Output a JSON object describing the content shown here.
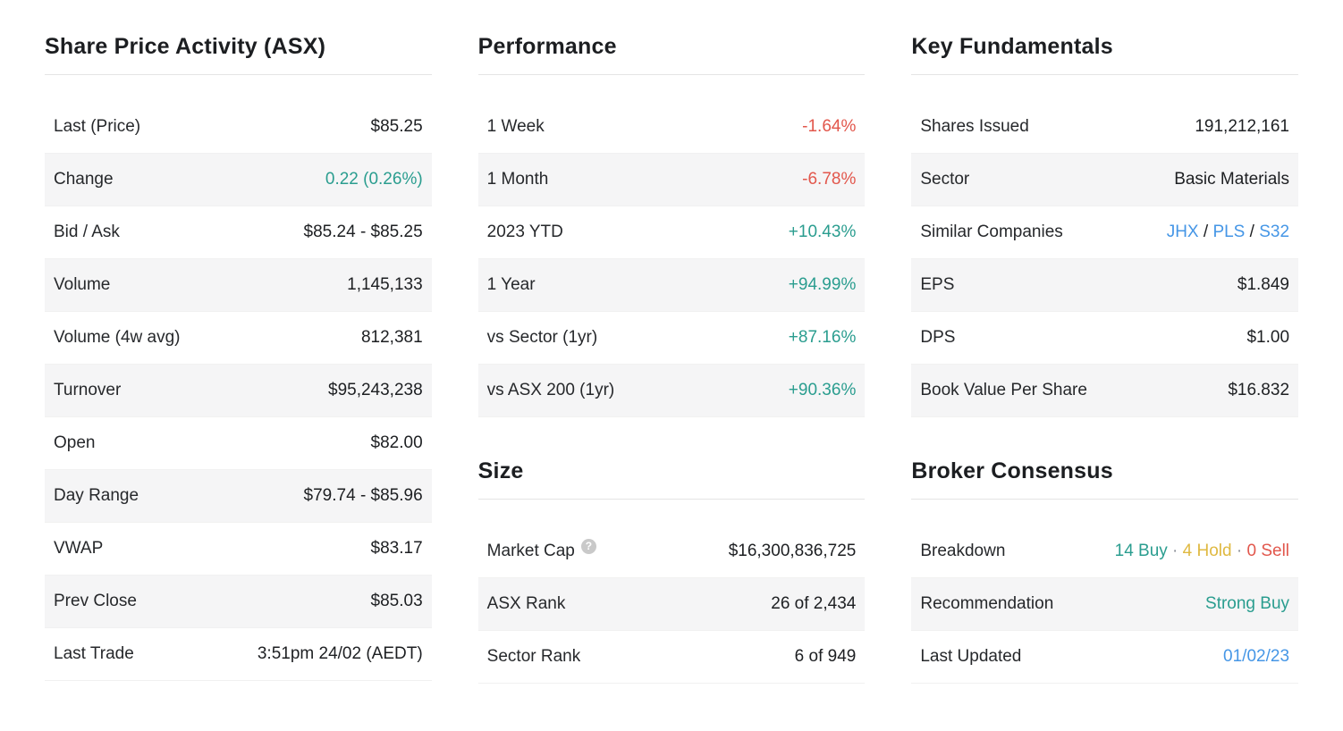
{
  "colors": {
    "positive": "#2a9d8f",
    "negative": "#e2574c",
    "link": "#4596e6",
    "hold": "#dfb941",
    "muted": "#8a8f98",
    "row_alt_bg": "#f5f5f6"
  },
  "columns": [
    {
      "sections": [
        {
          "id": "share-price-activity",
          "title": "Share Price Activity (ASX)",
          "rows": [
            {
              "label": "Last (Price)",
              "parts": [
                {
                  "text": "$85.25"
                }
              ]
            },
            {
              "label": "Change",
              "parts": [
                {
                  "text": "0.22 (0.26%)",
                  "style": "positive"
                }
              ]
            },
            {
              "label": "Bid / Ask",
              "parts": [
                {
                  "text": "$85.24 - $85.25"
                }
              ]
            },
            {
              "label": "Volume",
              "parts": [
                {
                  "text": "1,145,133"
                }
              ]
            },
            {
              "label": "Volume (4w avg)",
              "parts": [
                {
                  "text": "812,381"
                }
              ]
            },
            {
              "label": "Turnover",
              "parts": [
                {
                  "text": "$95,243,238"
                }
              ]
            },
            {
              "label": "Open",
              "parts": [
                {
                  "text": "$82.00"
                }
              ]
            },
            {
              "label": "Day Range",
              "parts": [
                {
                  "text": "$79.74 - $85.96"
                }
              ]
            },
            {
              "label": "VWAP",
              "parts": [
                {
                  "text": "$83.17"
                }
              ]
            },
            {
              "label": "Prev Close",
              "parts": [
                {
                  "text": "$85.03"
                }
              ]
            },
            {
              "label": "Last Trade",
              "parts": [
                {
                  "text": "3:51pm 24/02 (AEDT)"
                }
              ]
            }
          ]
        }
      ]
    },
    {
      "sections": [
        {
          "id": "performance",
          "title": "Performance",
          "rows": [
            {
              "label": "1 Week",
              "parts": [
                {
                  "text": "-1.64%",
                  "style": "negative"
                }
              ]
            },
            {
              "label": "1 Month",
              "parts": [
                {
                  "text": "-6.78%",
                  "style": "negative"
                }
              ]
            },
            {
              "label": "2023 YTD",
              "parts": [
                {
                  "text": "+10.43%",
                  "style": "positive"
                }
              ]
            },
            {
              "label": "1 Year",
              "parts": [
                {
                  "text": "+94.99%",
                  "style": "positive"
                }
              ]
            },
            {
              "label": "vs Sector (1yr)",
              "parts": [
                {
                  "text": "+87.16%",
                  "style": "positive"
                }
              ]
            },
            {
              "label": "vs ASX 200 (1yr)",
              "parts": [
                {
                  "text": "+90.36%",
                  "style": "positive"
                }
              ]
            }
          ]
        },
        {
          "id": "size",
          "title": "Size",
          "rows": [
            {
              "label": "Market Cap",
              "help_icon": {
                "glyph": "?",
                "name": "market-cap-help-icon"
              },
              "parts": [
                {
                  "text": "$16,300,836,725"
                }
              ]
            },
            {
              "label": "ASX Rank",
              "parts": [
                {
                  "text": "26 of 2,434"
                }
              ]
            },
            {
              "label": "Sector Rank",
              "parts": [
                {
                  "text": "6 of 949"
                }
              ]
            }
          ]
        }
      ]
    },
    {
      "sections": [
        {
          "id": "key-fundamentals",
          "title": "Key Fundamentals",
          "rows": [
            {
              "label": "Shares Issued",
              "parts": [
                {
                  "text": "191,212,161"
                }
              ]
            },
            {
              "label": "Sector",
              "parts": [
                {
                  "text": "Basic Materials"
                }
              ]
            },
            {
              "label": "Similar Companies",
              "parts": [
                {
                  "text": "JHX",
                  "style": "link",
                  "interactable": true,
                  "name": "similar-company-link-jhx"
                },
                {
                  "text": " / "
                },
                {
                  "text": "PLS",
                  "style": "link",
                  "interactable": true,
                  "name": "similar-company-link-pls"
                },
                {
                  "text": " / "
                },
                {
                  "text": "S32",
                  "style": "link",
                  "interactable": true,
                  "name": "similar-company-link-s32"
                }
              ]
            },
            {
              "label": "EPS",
              "parts": [
                {
                  "text": "$1.849"
                }
              ]
            },
            {
              "label": "DPS",
              "parts": [
                {
                  "text": "$1.00"
                }
              ]
            },
            {
              "label": "Book Value Per Share",
              "parts": [
                {
                  "text": "$16.832"
                }
              ]
            }
          ]
        },
        {
          "id": "broker-consensus",
          "title": "Broker Consensus",
          "rows": [
            {
              "label": "Breakdown",
              "parts": [
                {
                  "text": "14 Buy",
                  "style": "positive"
                },
                {
                  "text": " · ",
                  "style": "muted"
                },
                {
                  "text": "4 Hold",
                  "style": "hold"
                },
                {
                  "text": " · ",
                  "style": "muted"
                },
                {
                  "text": "0 Sell",
                  "style": "negative"
                }
              ]
            },
            {
              "label": "Recommendation",
              "parts": [
                {
                  "text": "Strong Buy",
                  "style": "positive"
                }
              ]
            },
            {
              "label": "Last Updated",
              "parts": [
                {
                  "text": "01/02/23",
                  "style": "link",
                  "interactable": true,
                  "name": "last-updated-link"
                }
              ]
            }
          ]
        }
      ]
    }
  ]
}
